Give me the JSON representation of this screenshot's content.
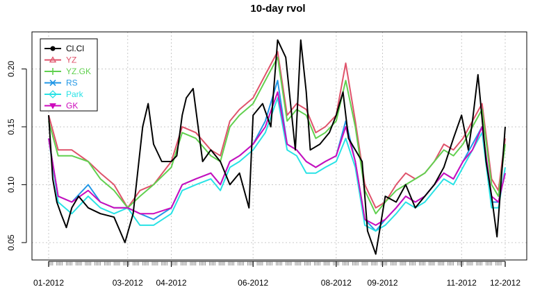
{
  "chart_data": {
    "type": "line",
    "title": "10-day rvol",
    "xlabel": "",
    "ylabel": "",
    "x_range": [
      "2012-01-03",
      "2012-12-03"
    ],
    "x_tick_labels": [
      "01-2012",
      "03-2012",
      "04-2012",
      "06-2012",
      "08-2012",
      "09-2012",
      "11-2012",
      "12-2012"
    ],
    "x_tick_dates": [
      "2012-01-03",
      "2012-03-01",
      "2012-04-02",
      "2012-06-01",
      "2012-08-01",
      "2012-09-04",
      "2012-11-01",
      "2012-12-03"
    ],
    "y_ticks": [
      0.05,
      0.1,
      0.15,
      0.2
    ],
    "y_tick_labels": [
      "0.05",
      "0.10",
      "0.15",
      "0.20"
    ],
    "ylim": [
      0.035,
      0.232
    ],
    "grid": true,
    "legend_position": "top-left",
    "series": [
      {
        "name": "Cl.Cl",
        "color": "#000000",
        "marker": "circle",
        "x": [
          "2012-01-03",
          "2012-01-06",
          "2012-01-09",
          "2012-01-12",
          "2012-01-16",
          "2012-01-20",
          "2012-01-25",
          "2012-02-01",
          "2012-02-10",
          "2012-02-20",
          "2012-02-28",
          "2012-03-05",
          "2012-03-12",
          "2012-03-16",
          "2012-03-20",
          "2012-03-26",
          "2012-04-02",
          "2012-04-06",
          "2012-04-10",
          "2012-04-13",
          "2012-04-18",
          "2012-04-25",
          "2012-05-01",
          "2012-05-08",
          "2012-05-15",
          "2012-05-22",
          "2012-05-29",
          "2012-06-01",
          "2012-06-08",
          "2012-06-14",
          "2012-06-19",
          "2012-06-25",
          "2012-07-02",
          "2012-07-06",
          "2012-07-10",
          "2012-07-13",
          "2012-07-20",
          "2012-07-27",
          "2012-08-01",
          "2012-08-06",
          "2012-08-10",
          "2012-08-15",
          "2012-08-20",
          "2012-08-24",
          "2012-08-30",
          "2012-09-06",
          "2012-09-14",
          "2012-09-21",
          "2012-09-28",
          "2012-10-05",
          "2012-10-12",
          "2012-10-19",
          "2012-10-26",
          "2012-11-01",
          "2012-11-06",
          "2012-11-09",
          "2012-11-13",
          "2012-11-19",
          "2012-11-23",
          "2012-11-27",
          "2012-12-03"
        ],
        "values": [
          0.16,
          0.105,
          0.085,
          0.075,
          0.063,
          0.08,
          0.09,
          0.08,
          0.075,
          0.072,
          0.05,
          0.075,
          0.15,
          0.17,
          0.135,
          0.12,
          0.12,
          0.125,
          0.16,
          0.175,
          0.183,
          0.12,
          0.13,
          0.12,
          0.1,
          0.11,
          0.08,
          0.16,
          0.17,
          0.15,
          0.225,
          0.21,
          0.13,
          0.225,
          0.18,
          0.13,
          0.135,
          0.145,
          0.16,
          0.18,
          0.14,
          0.13,
          0.12,
          0.06,
          0.04,
          0.09,
          0.085,
          0.1,
          0.08,
          0.09,
          0.1,
          0.115,
          0.14,
          0.16,
          0.13,
          0.155,
          0.195,
          0.12,
          0.09,
          0.055,
          0.15
        ]
      },
      {
        "name": "YZ",
        "color": "#DF536B",
        "marker": "triangle",
        "x": [
          "2012-01-03",
          "2012-01-10",
          "2012-01-20",
          "2012-02-01",
          "2012-02-10",
          "2012-02-20",
          "2012-03-01",
          "2012-03-10",
          "2012-03-20",
          "2012-04-02",
          "2012-04-10",
          "2012-04-20",
          "2012-05-01",
          "2012-05-08",
          "2012-05-15",
          "2012-05-22",
          "2012-06-01",
          "2012-06-10",
          "2012-06-19",
          "2012-06-26",
          "2012-07-03",
          "2012-07-10",
          "2012-07-17",
          "2012-07-24",
          "2012-08-01",
          "2012-08-08",
          "2012-08-15",
          "2012-08-22",
          "2012-08-30",
          "2012-09-06",
          "2012-09-14",
          "2012-09-21",
          "2012-09-28",
          "2012-10-05",
          "2012-10-12",
          "2012-10-19",
          "2012-10-26",
          "2012-11-02",
          "2012-11-09",
          "2012-11-16",
          "2012-11-23",
          "2012-11-28",
          "2012-12-03"
        ],
        "values": [
          0.16,
          0.13,
          0.13,
          0.12,
          0.11,
          0.1,
          0.08,
          0.095,
          0.1,
          0.12,
          0.15,
          0.145,
          0.13,
          0.125,
          0.155,
          0.165,
          0.175,
          0.195,
          0.215,
          0.16,
          0.17,
          0.165,
          0.145,
          0.15,
          0.16,
          0.205,
          0.155,
          0.1,
          0.08,
          0.085,
          0.1,
          0.11,
          0.105,
          0.11,
          0.12,
          0.135,
          0.13,
          0.14,
          0.155,
          0.17,
          0.105,
          0.095,
          0.14
        ]
      },
      {
        "name": "YZ.GK",
        "color": "#61D04F",
        "marker": "plus",
        "x": [
          "2012-01-03",
          "2012-01-10",
          "2012-01-20",
          "2012-02-01",
          "2012-02-10",
          "2012-02-20",
          "2012-03-01",
          "2012-03-10",
          "2012-03-20",
          "2012-04-02",
          "2012-04-10",
          "2012-04-20",
          "2012-05-01",
          "2012-05-08",
          "2012-05-15",
          "2012-05-22",
          "2012-06-01",
          "2012-06-10",
          "2012-06-19",
          "2012-06-26",
          "2012-07-03",
          "2012-07-10",
          "2012-07-17",
          "2012-07-24",
          "2012-08-01",
          "2012-08-08",
          "2012-08-15",
          "2012-08-22",
          "2012-08-30",
          "2012-09-06",
          "2012-09-14",
          "2012-09-21",
          "2012-09-28",
          "2012-10-05",
          "2012-10-12",
          "2012-10-19",
          "2012-10-26",
          "2012-11-02",
          "2012-11-09",
          "2012-11-16",
          "2012-11-23",
          "2012-11-28",
          "2012-12-03"
        ],
        "values": [
          0.155,
          0.125,
          0.125,
          0.12,
          0.105,
          0.095,
          0.08,
          0.09,
          0.1,
          0.115,
          0.145,
          0.14,
          0.125,
          0.12,
          0.15,
          0.16,
          0.17,
          0.19,
          0.21,
          0.155,
          0.165,
          0.16,
          0.14,
          0.145,
          0.155,
          0.19,
          0.15,
          0.095,
          0.075,
          0.085,
          0.095,
          0.1,
          0.105,
          0.11,
          0.12,
          0.13,
          0.125,
          0.135,
          0.15,
          0.165,
          0.1,
          0.09,
          0.135
        ]
      },
      {
        "name": "RS",
        "color": "#2297E6",
        "marker": "cross",
        "x": [
          "2012-01-03",
          "2012-01-10",
          "2012-01-20",
          "2012-02-01",
          "2012-02-10",
          "2012-02-20",
          "2012-03-01",
          "2012-03-10",
          "2012-03-20",
          "2012-04-02",
          "2012-04-10",
          "2012-04-20",
          "2012-05-01",
          "2012-05-08",
          "2012-05-15",
          "2012-05-22",
          "2012-06-01",
          "2012-06-10",
          "2012-06-19",
          "2012-06-26",
          "2012-07-03",
          "2012-07-10",
          "2012-07-17",
          "2012-07-24",
          "2012-08-01",
          "2012-08-08",
          "2012-08-15",
          "2012-08-22",
          "2012-08-30",
          "2012-09-06",
          "2012-09-14",
          "2012-09-21",
          "2012-09-28",
          "2012-10-05",
          "2012-10-12",
          "2012-10-19",
          "2012-10-26",
          "2012-11-02",
          "2012-11-09",
          "2012-11-16",
          "2012-11-23",
          "2012-11-28",
          "2012-12-03"
        ],
        "values": [
          0.14,
          0.09,
          0.085,
          0.1,
          0.085,
          0.08,
          0.08,
          0.075,
          0.07,
          0.08,
          0.1,
          0.105,
          0.11,
          0.1,
          0.12,
          0.125,
          0.135,
          0.155,
          0.19,
          0.135,
          0.13,
          0.12,
          0.115,
          0.12,
          0.125,
          0.155,
          0.12,
          0.07,
          0.06,
          0.07,
          0.08,
          0.09,
          0.085,
          0.09,
          0.1,
          0.11,
          0.105,
          0.12,
          0.135,
          0.15,
          0.085,
          0.085,
          0.11
        ]
      },
      {
        "name": "Park",
        "color": "#28E2E5",
        "marker": "diamond",
        "x": [
          "2012-01-03",
          "2012-01-10",
          "2012-01-20",
          "2012-02-01",
          "2012-02-10",
          "2012-02-20",
          "2012-03-01",
          "2012-03-10",
          "2012-03-20",
          "2012-04-02",
          "2012-04-10",
          "2012-04-20",
          "2012-05-01",
          "2012-05-08",
          "2012-05-15",
          "2012-05-22",
          "2012-06-01",
          "2012-06-10",
          "2012-06-19",
          "2012-06-26",
          "2012-07-03",
          "2012-07-10",
          "2012-07-17",
          "2012-07-24",
          "2012-08-01",
          "2012-08-08",
          "2012-08-15",
          "2012-08-22",
          "2012-08-30",
          "2012-09-06",
          "2012-09-14",
          "2012-09-21",
          "2012-09-28",
          "2012-10-05",
          "2012-10-12",
          "2012-10-19",
          "2012-10-26",
          "2012-11-02",
          "2012-11-09",
          "2012-11-16",
          "2012-11-23",
          "2012-11-28",
          "2012-12-03"
        ],
        "values": [
          0.14,
          0.085,
          0.075,
          0.09,
          0.08,
          0.075,
          0.08,
          0.065,
          0.065,
          0.075,
          0.095,
          0.1,
          0.105,
          0.095,
          0.115,
          0.12,
          0.13,
          0.145,
          0.175,
          0.13,
          0.125,
          0.11,
          0.11,
          0.115,
          0.12,
          0.14,
          0.115,
          0.065,
          0.06,
          0.065,
          0.075,
          0.085,
          0.08,
          0.085,
          0.095,
          0.105,
          0.1,
          0.115,
          0.13,
          0.145,
          0.08,
          0.08,
          0.115
        ]
      },
      {
        "name": "GK",
        "color": "#CD0BBC",
        "marker": "triangle-down",
        "x": [
          "2012-01-03",
          "2012-01-10",
          "2012-01-20",
          "2012-02-01",
          "2012-02-10",
          "2012-02-20",
          "2012-03-01",
          "2012-03-10",
          "2012-03-20",
          "2012-04-02",
          "2012-04-10",
          "2012-04-20",
          "2012-05-01",
          "2012-05-08",
          "2012-05-15",
          "2012-05-22",
          "2012-06-01",
          "2012-06-10",
          "2012-06-19",
          "2012-06-26",
          "2012-07-03",
          "2012-07-10",
          "2012-07-17",
          "2012-07-24",
          "2012-08-01",
          "2012-08-08",
          "2012-08-15",
          "2012-08-22",
          "2012-08-30",
          "2012-09-06",
          "2012-09-14",
          "2012-09-21",
          "2012-09-28",
          "2012-10-05",
          "2012-10-12",
          "2012-10-19",
          "2012-10-26",
          "2012-11-02",
          "2012-11-09",
          "2012-11-16",
          "2012-11-23",
          "2012-11-28",
          "2012-12-03"
        ],
        "values": [
          0.14,
          0.09,
          0.085,
          0.095,
          0.085,
          0.08,
          0.08,
          0.075,
          0.075,
          0.08,
          0.1,
          0.105,
          0.11,
          0.1,
          0.12,
          0.125,
          0.135,
          0.15,
          0.18,
          0.135,
          0.13,
          0.12,
          0.115,
          0.12,
          0.125,
          0.15,
          0.12,
          0.07,
          0.065,
          0.07,
          0.08,
          0.09,
          0.085,
          0.09,
          0.1,
          0.11,
          0.105,
          0.12,
          0.13,
          0.15,
          0.09,
          0.085,
          0.11
        ]
      }
    ]
  }
}
